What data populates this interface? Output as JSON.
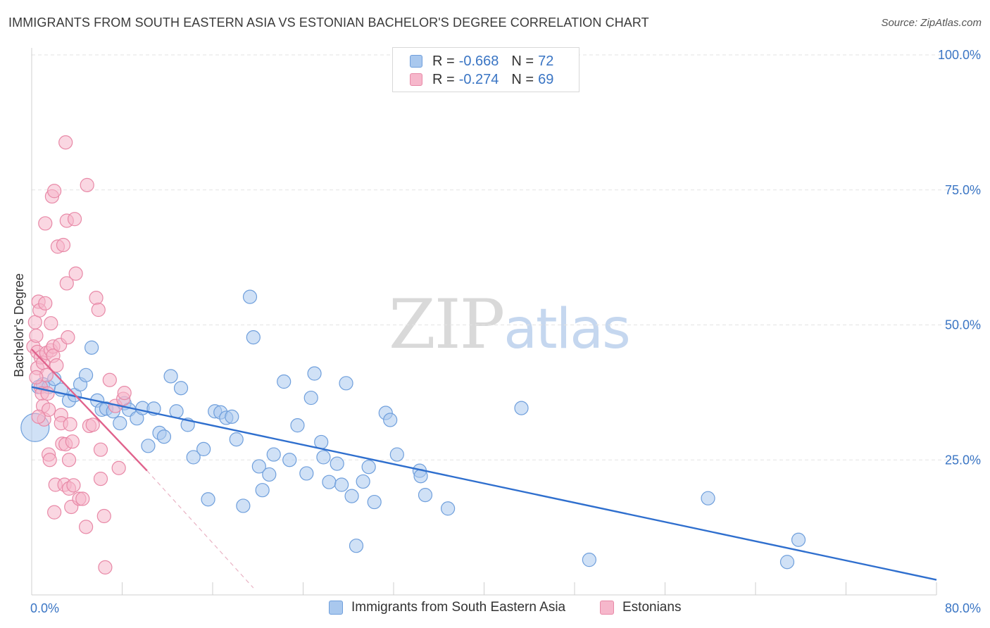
{
  "header": {
    "title": "IMMIGRANTS FROM SOUTH EASTERN ASIA VS ESTONIAN BACHELOR'S DEGREE CORRELATION CHART",
    "source": "Source: ZipAtlas.com"
  },
  "watermark": {
    "zip": "ZIP",
    "atlas": "atlas"
  },
  "legend": {
    "rows": [
      {
        "r_label": "R =",
        "r_value": "-0.668",
        "n_label": "N =",
        "n_value": "72"
      },
      {
        "r_label": "R =",
        "r_value": "-0.274",
        "n_label": "N =",
        "n_value": "69"
      }
    ]
  },
  "colors": {
    "blue_fill": "#a9c8ee",
    "blue_stroke": "#6f9fdc",
    "blue_line": "#2f6fce",
    "pink_fill": "#f6b7cb",
    "pink_stroke": "#e889a7",
    "pink_line": "#e0628c",
    "tick_text": "#3a75c4",
    "grid": "#e3e3e3"
  },
  "chart_data": {
    "type": "scatter",
    "title": "IMMIGRANTS FROM SOUTH EASTERN ASIA VS ESTONIAN BACHELOR'S DEGREE CORRELATION CHART",
    "xlabel": "",
    "ylabel": "Bachelor's Degree",
    "xlim": [
      0,
      80
    ],
    "ylim": [
      0,
      100
    ],
    "x_tick_labels": [
      "0.0%",
      "80.0%"
    ],
    "y_ticks": [
      25,
      50,
      75,
      100
    ],
    "y_tick_labels": [
      "25.0%",
      "50.0%",
      "75.0%",
      "100.0%"
    ],
    "series": [
      {
        "name": "Immigrants from South Eastern Asia",
        "color": "blue",
        "r": -0.668,
        "n": 72,
        "trend": {
          "x": [
            0,
            80
          ],
          "y": [
            38.5,
            2.8
          ]
        },
        "points": [
          [
            0.3,
            31
          ],
          [
            0.6,
            38.5
          ],
          [
            1.0,
            39
          ],
          [
            1.5,
            38.5
          ],
          [
            2.0,
            40
          ],
          [
            2.6,
            38
          ],
          [
            3.3,
            36
          ],
          [
            3.8,
            37
          ],
          [
            4.3,
            39
          ],
          [
            4.8,
            40.7
          ],
          [
            5.3,
            45.8
          ],
          [
            5.8,
            36
          ],
          [
            6.2,
            34.3
          ],
          [
            6.6,
            34.5
          ],
          [
            7.2,
            34
          ],
          [
            7.8,
            31.8
          ],
          [
            8.2,
            35.5
          ],
          [
            8.6,
            34.3
          ],
          [
            9.3,
            32.7
          ],
          [
            9.8,
            34.6
          ],
          [
            10.3,
            27.6
          ],
          [
            10.8,
            34.5
          ],
          [
            11.3,
            30
          ],
          [
            11.7,
            29.3
          ],
          [
            12.3,
            40.5
          ],
          [
            12.8,
            34
          ],
          [
            13.2,
            38.3
          ],
          [
            13.8,
            31.5
          ],
          [
            14.3,
            25.5
          ],
          [
            15.2,
            27
          ],
          [
            15.6,
            17.7
          ],
          [
            16.2,
            34
          ],
          [
            16.7,
            33.8
          ],
          [
            17.2,
            32.8
          ],
          [
            17.7,
            33
          ],
          [
            18.1,
            28.8
          ],
          [
            18.7,
            16.5
          ],
          [
            19.3,
            55.2
          ],
          [
            19.6,
            47.7
          ],
          [
            20.1,
            23.8
          ],
          [
            20.4,
            19.4
          ],
          [
            21.0,
            22.3
          ],
          [
            21.4,
            26
          ],
          [
            22.3,
            39.5
          ],
          [
            22.8,
            25
          ],
          [
            23.5,
            31.4
          ],
          [
            24.3,
            22.5
          ],
          [
            24.7,
            36.5
          ],
          [
            25.0,
            41
          ],
          [
            25.6,
            28.3
          ],
          [
            25.8,
            25.5
          ],
          [
            26.3,
            20.9
          ],
          [
            27.0,
            24.3
          ],
          [
            27.4,
            20.4
          ],
          [
            27.8,
            39.2
          ],
          [
            28.3,
            18.3
          ],
          [
            28.7,
            9.1
          ],
          [
            29.3,
            21
          ],
          [
            29.8,
            23.7
          ],
          [
            30.3,
            17.2
          ],
          [
            31.3,
            33.7
          ],
          [
            31.7,
            32.4
          ],
          [
            32.3,
            26
          ],
          [
            34.3,
            23
          ],
          [
            34.4,
            22
          ],
          [
            34.8,
            18.5
          ],
          [
            36.8,
            16
          ],
          [
            43.3,
            34.6
          ],
          [
            49.3,
            6.5
          ],
          [
            59.8,
            17.9
          ],
          [
            66.8,
            6.1
          ],
          [
            67.8,
            10.2
          ]
        ]
      },
      {
        "name": "Estonians",
        "color": "pink",
        "r": -0.274,
        "n": 69,
        "trend": {
          "x": [
            0,
            10.2
          ],
          "y": [
            45.5,
            23
          ]
        },
        "trend_dashed": {
          "x": [
            10.2,
            19.6
          ],
          "y": [
            23,
            1.3
          ]
        },
        "points": [
          [
            0.15,
            46
          ],
          [
            0.3,
            50.5
          ],
          [
            0.4,
            48
          ],
          [
            0.5,
            45
          ],
          [
            0.5,
            42
          ],
          [
            0.6,
            54.3
          ],
          [
            0.7,
            52.7
          ],
          [
            0.8,
            38.5
          ],
          [
            0.8,
            44
          ],
          [
            0.9,
            37.3
          ],
          [
            1.0,
            35
          ],
          [
            1.0,
            43
          ],
          [
            1.1,
            32.5
          ],
          [
            1.2,
            54
          ],
          [
            1.2,
            68.8
          ],
          [
            1.3,
            40.7
          ],
          [
            1.3,
            44.8
          ],
          [
            1.4,
            37.3
          ],
          [
            1.5,
            34.3
          ],
          [
            1.5,
            26
          ],
          [
            1.6,
            25
          ],
          [
            1.7,
            50.3
          ],
          [
            1.7,
            45.3
          ],
          [
            1.8,
            73.8
          ],
          [
            1.9,
            46
          ],
          [
            1.9,
            44.3
          ],
          [
            2.0,
            74.8
          ],
          [
            2.0,
            15.3
          ],
          [
            2.1,
            20.4
          ],
          [
            2.2,
            42.5
          ],
          [
            2.3,
            64.5
          ],
          [
            2.5,
            46.3
          ],
          [
            2.6,
            33.3
          ],
          [
            2.6,
            31.8
          ],
          [
            2.7,
            28
          ],
          [
            2.8,
            64.8
          ],
          [
            2.9,
            20.4
          ],
          [
            3.0,
            83.8
          ],
          [
            3.0,
            27.9
          ],
          [
            3.1,
            69.3
          ],
          [
            3.1,
            57.7
          ],
          [
            3.2,
            47.7
          ],
          [
            3.3,
            19.7
          ],
          [
            3.3,
            25
          ],
          [
            3.4,
            31.6
          ],
          [
            3.5,
            16.3
          ],
          [
            3.6,
            28.4
          ],
          [
            3.7,
            20.3
          ],
          [
            3.8,
            69.6
          ],
          [
            3.9,
            59.5
          ],
          [
            4.2,
            17.8
          ],
          [
            4.5,
            17.8
          ],
          [
            4.9,
            75.9
          ],
          [
            4.8,
            12.6
          ],
          [
            5.1,
            31.3
          ],
          [
            5.4,
            31.5
          ],
          [
            5.7,
            55
          ],
          [
            5.9,
            52.8
          ],
          [
            6.1,
            26.9
          ],
          [
            6.1,
            21.5
          ],
          [
            6.4,
            14.6
          ],
          [
            6.5,
            5.1
          ],
          [
            6.9,
            39.8
          ],
          [
            7.4,
            35
          ],
          [
            7.7,
            23.5
          ],
          [
            8.1,
            36.3
          ],
          [
            8.2,
            37.4
          ],
          [
            0.4,
            40.3
          ],
          [
            0.6,
            33
          ]
        ]
      }
    ]
  },
  "bottom_legend": {
    "series1": "Immigrants from South Eastern Asia",
    "series2": "Estonians"
  }
}
